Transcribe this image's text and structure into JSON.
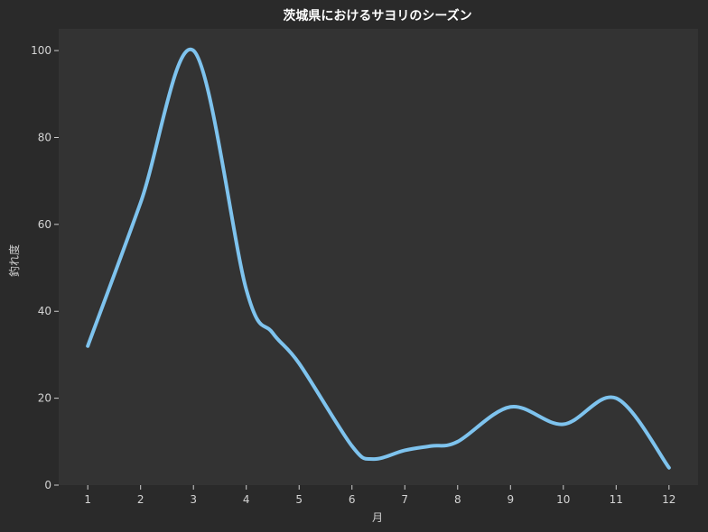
{
  "chart_data": {
    "type": "line",
    "title": "茨城県におけるサヨリのシーズン",
    "xlabel": "月",
    "ylabel": "釣れ度",
    "x": [
      1,
      2,
      3,
      4,
      4.5,
      5,
      6,
      6.4,
      7,
      7.5,
      8,
      9,
      10,
      11,
      12
    ],
    "y": [
      32,
      65,
      100,
      45,
      35,
      28,
      9,
      6,
      8,
      9,
      10,
      18,
      14,
      20,
      4
    ],
    "xticks": [
      "1",
      "2",
      "3",
      "4",
      "5",
      "6",
      "7",
      "8",
      "9",
      "10",
      "11",
      "12"
    ],
    "yticks": [
      "0",
      "20",
      "40",
      "60",
      "80",
      "100"
    ],
    "xlim": [
      0.45,
      12.55
    ],
    "ylim": [
      0,
      105
    ],
    "grid": false,
    "colors": {
      "background": "#2a2a2a",
      "plot_area": "#333333",
      "line": "#7ec3ee",
      "text": "#d4d4d4"
    }
  }
}
